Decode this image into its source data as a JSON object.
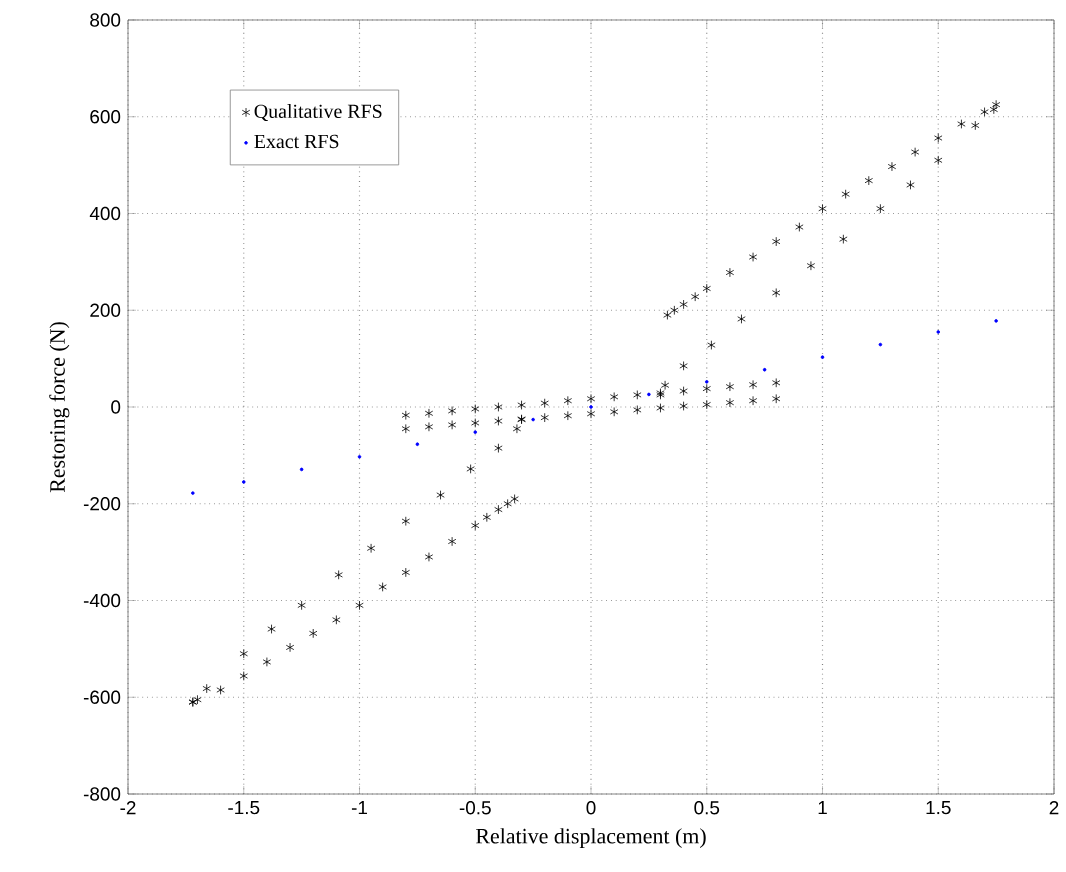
{
  "chart_data": {
    "type": "scatter",
    "xlabel": "Relative displacement (m)",
    "ylabel": "Restoring force (N)",
    "xlim": [
      -2,
      2
    ],
    "ylim": [
      -800,
      800
    ],
    "xticks": [
      -2,
      -1.5,
      -1,
      -0.5,
      0,
      0.5,
      1,
      1.5,
      2
    ],
    "yticks": [
      -800,
      -600,
      -400,
      -200,
      0,
      200,
      400,
      600,
      800
    ],
    "grid": true,
    "legend": "top left",
    "series": [
      {
        "name": "Qualitative RFS",
        "color": "#000000",
        "marker": "cross",
        "x": [
          0.33,
          0.36,
          0.4,
          0.45,
          0.5,
          0.6,
          0.7,
          0.8,
          0.9,
          1.0,
          1.1,
          1.2,
          1.3,
          1.4,
          1.5,
          1.6,
          1.7,
          1.75,
          0.3,
          0.32,
          0.4,
          0.52,
          0.65,
          0.8,
          0.95,
          1.09,
          1.25,
          1.38,
          1.5,
          1.66,
          1.74,
          -0.33,
          -0.36,
          -0.4,
          -0.45,
          -0.5,
          -0.6,
          -0.7,
          -0.8,
          -0.9,
          -1.0,
          -1.1,
          -1.2,
          -1.3,
          -1.4,
          -1.5,
          -1.6,
          -1.7,
          -1.72,
          -0.3,
          -0.32,
          -0.4,
          -0.52,
          -0.65,
          -0.8,
          -0.95,
          -1.09,
          -1.25,
          -1.38,
          -1.5,
          -1.66,
          -1.72,
          -0.8,
          -0.7,
          -0.6,
          -0.5,
          -0.4,
          -0.3,
          -0.2,
          -0.1,
          0,
          0.1,
          0.2,
          0.3,
          0.4,
          0.5,
          0.6,
          0.7,
          0.8,
          -0.8,
          -0.7,
          -0.6,
          -0.5,
          -0.4,
          -0.3,
          -0.2,
          -0.1,
          0,
          0.1,
          0.2,
          0.3,
          0.4,
          0.5,
          0.6,
          0.7,
          0.8
        ],
        "values": [
          190,
          200,
          212,
          228,
          245,
          278,
          310,
          342,
          372,
          410,
          440,
          468,
          497,
          527,
          556,
          585,
          610,
          625,
          25,
          45,
          85,
          128,
          182,
          236,
          292,
          347,
          410,
          459,
          510,
          582,
          615,
          -190,
          -200,
          -212,
          -228,
          -245,
          -278,
          -310,
          -342,
          -372,
          -410,
          -440,
          -468,
          -497,
          -527,
          -556,
          -585,
          -605,
          -610,
          -25,
          -45,
          -85,
          -128,
          -182,
          -236,
          -292,
          -347,
          -410,
          -459,
          -510,
          -582,
          -610,
          -17,
          -13,
          -8,
          -4,
          0,
          4,
          8,
          13,
          17,
          21,
          25,
          29,
          33,
          38,
          42,
          46,
          50,
          -45,
          -41,
          -37,
          -33,
          -29,
          -26,
          -22,
          -18,
          -14,
          -10,
          -6,
          -2,
          2,
          5,
          9,
          13,
          17
        ]
      },
      {
        "name": "Exact RFS",
        "color": "#0000ff",
        "marker": "circle",
        "x": [
          -1.72,
          -1.5,
          -1.25,
          -1,
          -0.75,
          -0.5,
          -0.25,
          0,
          0.25,
          0.5,
          0.75,
          1,
          1.25,
          1.5,
          1.75
        ],
        "values": [
          -178,
          -155,
          -129,
          -103,
          -77,
          -52,
          -26,
          0,
          26,
          52,
          77,
          103,
          129,
          155,
          178
        ]
      }
    ]
  }
}
